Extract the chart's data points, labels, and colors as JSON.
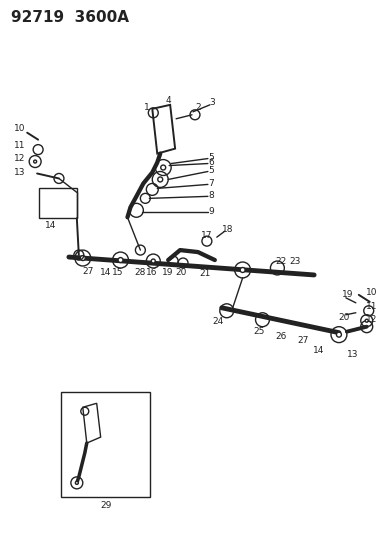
{
  "title": "92719  3600A",
  "bg_color": "#ffffff",
  "line_color": "#222222",
  "title_fontsize": 11,
  "label_fontsize": 7,
  "fig_width": 3.84,
  "fig_height": 5.33,
  "dpi": 100
}
